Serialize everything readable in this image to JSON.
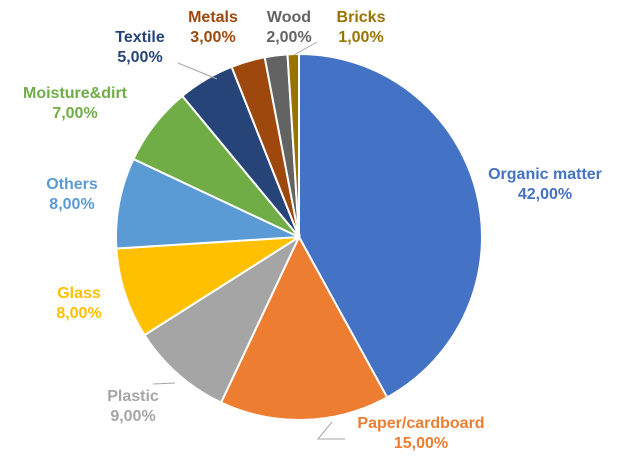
{
  "chart_data": {
    "type": "pie",
    "title": "",
    "slices": [
      {
        "name": "Organic matter",
        "value": 42,
        "label": "42,00%",
        "color": "#4472C4",
        "label_color": "#4472C4"
      },
      {
        "name": "Paper/cardboard",
        "value": 15,
        "label": "15,00%",
        "color": "#ED7D31",
        "label_color": "#ED7D31"
      },
      {
        "name": "Plastic",
        "value": 9,
        "label": "9,00%",
        "color": "#A5A5A5",
        "label_color": "#A5A5A5"
      },
      {
        "name": "Glass",
        "value": 8,
        "label": "8,00%",
        "color": "#FFC000",
        "label_color": "#FFC000"
      },
      {
        "name": "Others",
        "value": 8,
        "label": "8,00%",
        "color": "#5B9BD5",
        "label_color": "#5B9BD5"
      },
      {
        "name": "Moisture&dirt",
        "value": 7,
        "label": "7,00%",
        "color": "#70AD47",
        "label_color": "#70AD47"
      },
      {
        "name": "Textile",
        "value": 5,
        "label": "5,00%",
        "color": "#264478",
        "label_color": "#264478"
      },
      {
        "name": "Metals",
        "value": 3,
        "label": "3,00%",
        "color": "#9E480E",
        "label_color": "#9E480E"
      },
      {
        "name": "Wood",
        "value": 2,
        "label": "2,00%",
        "color": "#636363",
        "label_color": "#636363"
      },
      {
        "name": "Bricks",
        "value": 1,
        "label": "1,00%",
        "color": "#997300",
        "label_color": "#997300"
      }
    ]
  }
}
